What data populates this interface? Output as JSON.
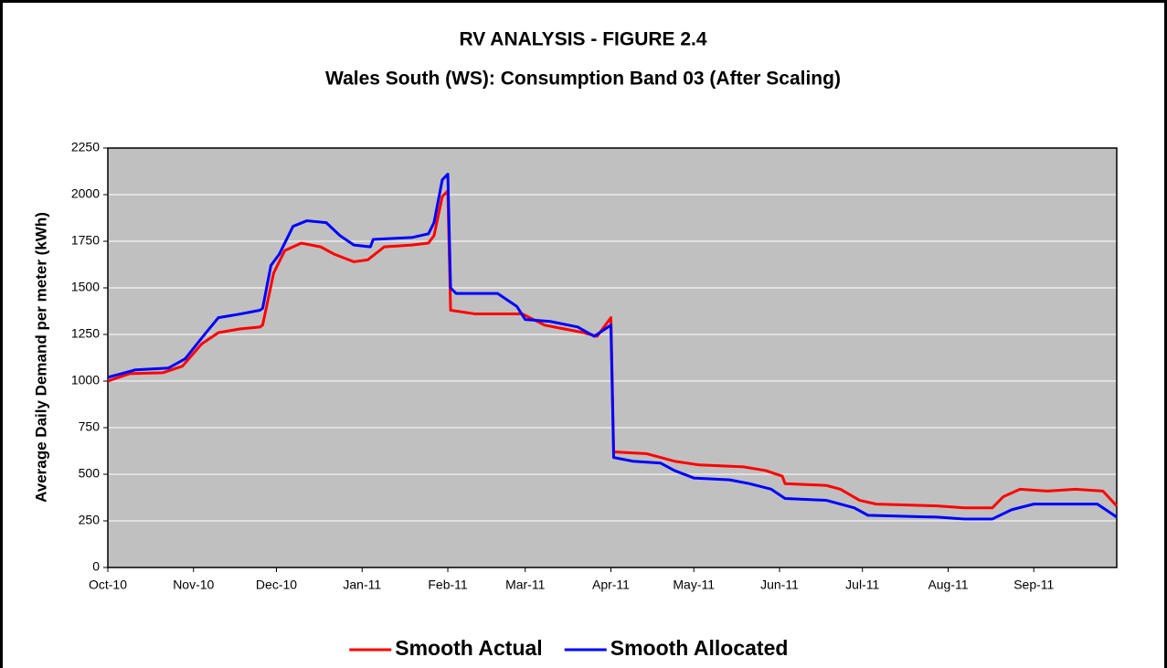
{
  "chart_data": {
    "type": "line",
    "title": "RV ANALYSIS - FIGURE 2.4",
    "subtitle": "Wales South (WS): Consumption Band 03 (After Scaling)",
    "y_label": "Average Daily Demand per meter (kWh)",
    "xlim": [
      0,
      365
    ],
    "xticks": [
      {
        "value": 0,
        "label": "Oct-10"
      },
      {
        "value": 31,
        "label": "Nov-10"
      },
      {
        "value": 61,
        "label": "Dec-10"
      },
      {
        "value": 92,
        "label": "Jan-11"
      },
      {
        "value": 123,
        "label": "Feb-11"
      },
      {
        "value": 151,
        "label": "Mar-11"
      },
      {
        "value": 182,
        "label": "Apr-11"
      },
      {
        "value": 212,
        "label": "May-11"
      },
      {
        "value": 243,
        "label": "Jun-11"
      },
      {
        "value": 273,
        "label": "Jul-11"
      },
      {
        "value": 304,
        "label": "Aug-11"
      },
      {
        "value": 335,
        "label": "Sep-11"
      }
    ],
    "ylim": [
      0,
      2250
    ],
    "yticks": [
      0,
      250,
      500,
      750,
      1000,
      1250,
      1500,
      1750,
      2000,
      2250
    ],
    "grid": true,
    "legend": "bottom",
    "series": [
      {
        "name": "Smooth Actual",
        "color": "#ff0000",
        "x": [
          0,
          8,
          20,
          27,
          34,
          40,
          48,
          55,
          56,
          60,
          64,
          70,
          77,
          82,
          89,
          94,
          100,
          110,
          116,
          118,
          121,
          123,
          124,
          133,
          150,
          158,
          165,
          172,
          177,
          182,
          183,
          195,
          205,
          214,
          230,
          238,
          244,
          245,
          260,
          265,
          272,
          278,
          300,
          310,
          320,
          324,
          330,
          340,
          350,
          360,
          365
        ],
        "values": [
          1000,
          1040,
          1045,
          1080,
          1200,
          1260,
          1280,
          1290,
          1300,
          1580,
          1700,
          1740,
          1720,
          1680,
          1640,
          1650,
          1720,
          1730,
          1740,
          1780,
          1990,
          2020,
          1380,
          1360,
          1360,
          1300,
          1280,
          1260,
          1240,
          1340,
          620,
          610,
          570,
          550,
          540,
          520,
          490,
          450,
          440,
          420,
          360,
          340,
          330,
          320,
          320,
          380,
          420,
          410,
          420,
          410,
          330
        ]
      },
      {
        "name": "Smooth Allocated",
        "color": "#0000ff",
        "x": [
          0,
          10,
          22,
          28,
          35,
          40,
          48,
          55,
          56,
          59,
          62,
          67,
          72,
          79,
          84,
          89,
          95,
          96,
          110,
          116,
          118,
          121,
          123,
          124,
          126,
          141,
          148,
          151,
          160,
          170,
          176,
          182,
          183,
          190,
          200,
          205,
          212,
          225,
          232,
          240,
          245,
          260,
          270,
          275,
          300,
          310,
          320,
          327,
          335,
          358,
          365
        ],
        "values": [
          1020,
          1060,
          1070,
          1120,
          1250,
          1340,
          1360,
          1380,
          1390,
          1620,
          1680,
          1830,
          1860,
          1850,
          1780,
          1730,
          1720,
          1760,
          1770,
          1790,
          1850,
          2080,
          2110,
          1500,
          1470,
          1470,
          1400,
          1330,
          1320,
          1290,
          1240,
          1300,
          590,
          570,
          560,
          520,
          480,
          470,
          450,
          420,
          370,
          360,
          320,
          280,
          270,
          260,
          260,
          310,
          340,
          340,
          270
        ]
      }
    ]
  }
}
